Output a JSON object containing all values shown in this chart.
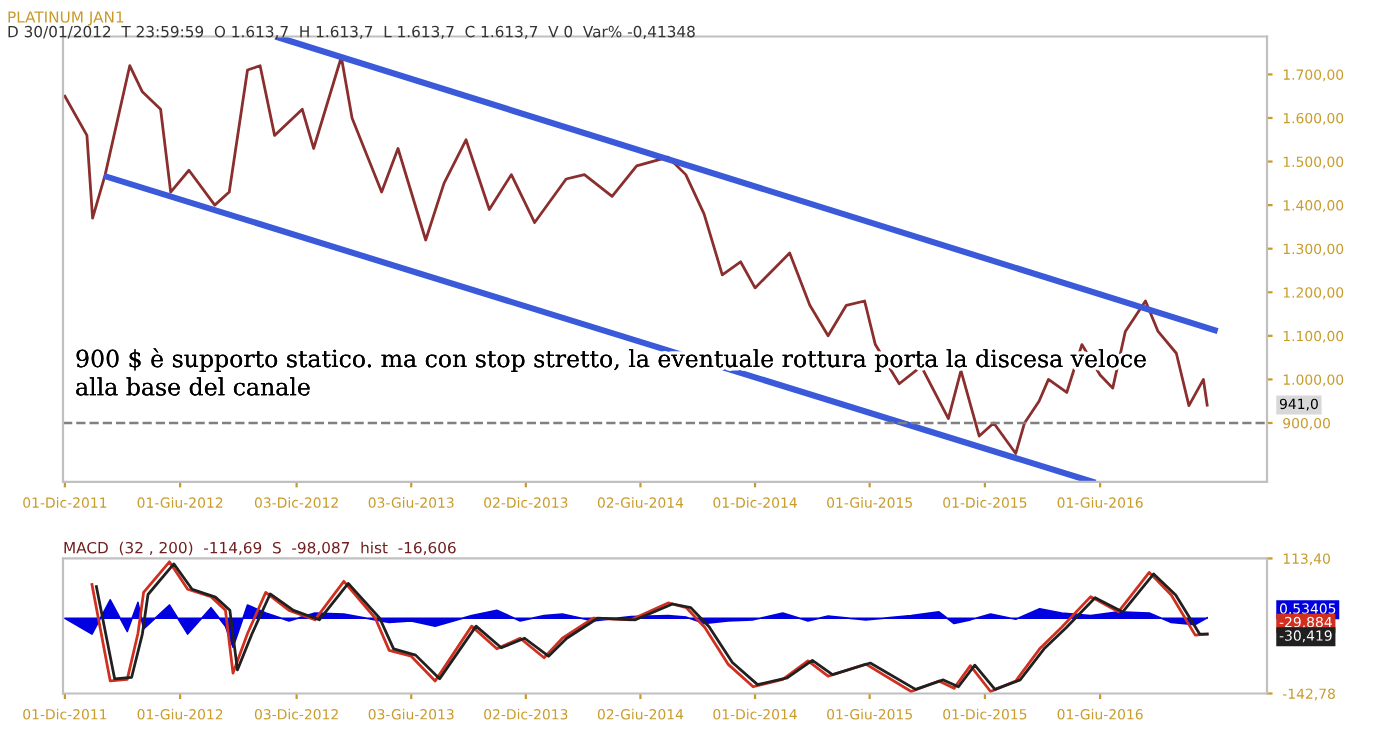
{
  "chart_data": [
    {
      "type": "line",
      "title": "PLATINUM JAN1",
      "subtitle": "D 30/01/2012  T 23:59:59  O 1.613,7  H 1.613,7  L 1.613,7  C 1.613,7  V 0  Var% -0,41348",
      "series": [
        {
          "color": "#8b2e2e",
          "x": [
            "2011-12-01",
            "2012-01-05",
            "2012-01-14",
            "2012-02-03",
            "2012-03-13",
            "2012-04-02",
            "2012-05-01",
            "2012-05-17",
            "2012-06-15",
            "2012-07-26",
            "2012-08-18",
            "2012-09-16",
            "2012-10-06",
            "2012-10-29",
            "2012-12-12",
            "2012-12-30",
            "2013-02-12",
            "2013-03-01",
            "2013-04-17",
            "2013-05-13",
            "2013-06-26",
            "2013-07-25",
            "2013-08-29",
            "2013-10-05",
            "2013-11-09",
            "2013-12-16",
            "2014-02-04",
            "2014-03-05",
            "2014-04-18",
            "2014-05-27",
            "2014-07-16",
            "2014-08-13",
            "2014-09-11",
            "2014-10-10",
            "2014-11-08",
            "2014-12-01",
            "2015-01-25",
            "2015-02-26",
            "2015-03-27",
            "2015-04-25",
            "2015-05-24",
            "2015-06-10",
            "2015-07-18",
            "2015-08-22",
            "2015-10-04",
            "2015-10-24",
            "2015-11-22",
            "2015-12-15",
            "2016-01-19",
            "2016-02-02",
            "2016-02-25",
            "2016-03-11",
            "2016-04-09",
            "2016-05-03",
            "2016-06-01",
            "2016-06-21",
            "2016-07-11",
            "2016-08-12",
            "2016-09-01",
            "2016-09-30",
            "2016-10-20",
            "2016-11-12",
            "2016-11-18"
          ],
          "values": [
            1650,
            1560,
            1370,
            1470,
            1720,
            1660,
            1620,
            1430,
            1480,
            1400,
            1430,
            1710,
            1720,
            1560,
            1620,
            1530,
            1740,
            1600,
            1430,
            1530,
            1320,
            1450,
            1550,
            1390,
            1470,
            1360,
            1460,
            1470,
            1420,
            1490,
            1510,
            1470,
            1380,
            1240,
            1270,
            1210,
            1290,
            1170,
            1100,
            1170,
            1180,
            1080,
            990,
            1030,
            910,
            1020,
            870,
            900,
            830,
            900,
            950,
            1000,
            970,
            1080,
            1010,
            980,
            1110,
            1180,
            1110,
            1060,
            940,
            1000,
            941
          ]
        },
        {
          "color": "#3a5ad9",
          "x": [
            "2012-11-04",
            "2016-11-30"
          ],
          "values": [
            1785,
            1113
          ]
        },
        {
          "color": "#3a5ad9",
          "x": [
            "2012-02-06",
            "2016-05-20"
          ],
          "values": [
            1465,
            765
          ]
        }
      ],
      "annotations": [
        "900 $ è supporto statico. ma con stop stretto, la eventuale rottura porta la discesa veloce\nalla base del canale",
        "941,0"
      ],
      "ref_lines": [
        {
          "axis": "y",
          "value": 900,
          "color": "#808080",
          "line_style": "dashed"
        }
      ],
      "xlim": [
        "2011-11-28",
        "2017-02-21"
      ],
      "xticks": [
        {
          "value": "2011-12-01",
          "label": "01-Dic-2011"
        },
        {
          "value": "2012-06-01",
          "label": "01-Giu-2012"
        },
        {
          "value": "2012-12-03",
          "label": "03-Dic-2012"
        },
        {
          "value": "2013-06-03",
          "label": "03-Giu-2013"
        },
        {
          "value": "2013-12-02",
          "label": "02-Dic-2013"
        },
        {
          "value": "2014-06-02",
          "label": "02-Giu-2014"
        },
        {
          "value": "2014-12-01",
          "label": "01-Dic-2014"
        },
        {
          "value": "2015-06-01",
          "label": "01-Giu-2015"
        },
        {
          "value": "2015-12-01",
          "label": "01-Dic-2015"
        },
        {
          "value": "2016-06-01",
          "label": "01-Giu-2016"
        }
      ],
      "ylim": [
        765,
        1787
      ],
      "yticks": [
        {
          "value": 900,
          "label": "900,00"
        },
        {
          "value": 1000,
          "label": "1.000,00"
        },
        {
          "value": 1100,
          "label": "1.100,00"
        },
        {
          "value": 1200,
          "label": "1.200,00"
        },
        {
          "value": 1300,
          "label": "1.300,00"
        },
        {
          "value": 1400,
          "label": "1.400,00"
        },
        {
          "value": 1500,
          "label": "1.500,00"
        },
        {
          "value": 1600,
          "label": "1.600,00"
        },
        {
          "value": 1700,
          "label": "1.700,00"
        }
      ]
    },
    {
      "type": "line",
      "title": "MACD  (32 , 200)  -114,69  S  -98,087  hist  -16,606",
      "series": [
        {
          "type": "area",
          "color": "#0000e0",
          "x": [
            "2011-12-01",
            "2012-01-13",
            "2012-02-11",
            "2012-03-09",
            "2012-03-26",
            "2012-04-04",
            "2012-05-15",
            "2012-06-13",
            "2012-07-20",
            "2012-08-12",
            "2012-08-24",
            "2012-09-16",
            "2012-10-15",
            "2012-11-21",
            "2013-01-01",
            "2013-02-16",
            "2013-04-07",
            "2013-04-29",
            "2013-06-03",
            "2013-07-11",
            "2013-09-07",
            "2013-10-17",
            "2013-11-23",
            "2013-12-31",
            "2014-01-29",
            "2014-03-19",
            "2014-05-18",
            "2014-07-16",
            "2014-08-14",
            "2014-09-12",
            "2014-10-19",
            "2014-11-28",
            "2015-01-14",
            "2015-02-23",
            "2015-03-27",
            "2015-05-26",
            "2015-08-06",
            "2015-09-19",
            "2015-10-13",
            "2015-11-08",
            "2015-12-10",
            "2016-01-19",
            "2016-02-26",
            "2016-04-01",
            "2016-05-17",
            "2016-06-30",
            "2016-08-18",
            "2016-09-22",
            "2016-10-30",
            "2016-11-18"
          ],
          "values": [
            0,
            -30,
            35,
            -25,
            30,
            -20,
            25,
            -30,
            20,
            -15,
            -55,
            25,
            10,
            -5,
            10,
            8,
            -3,
            -8,
            -5,
            -15,
            5,
            15,
            -5,
            5,
            8,
            -5,
            3,
            5,
            2,
            -10,
            -5,
            -3,
            10,
            -5,
            4,
            -3,
            5,
            12,
            -10,
            -3,
            8,
            -2,
            18,
            10,
            5,
            12,
            10,
            -8,
            -12,
            1
          ]
        },
        {
          "color": "#d03020",
          "x": [
            "2012-01-13",
            "2012-02-11",
            "2012-03-09",
            "2012-03-26",
            "2012-04-04",
            "2012-05-15",
            "2012-06-13",
            "2012-07-20",
            "2012-08-12",
            "2012-08-24",
            "2012-09-16",
            "2012-10-15",
            "2012-11-21",
            "2013-01-01",
            "2013-02-16",
            "2013-04-07",
            "2013-04-29",
            "2013-06-03",
            "2013-07-11",
            "2013-09-07",
            "2013-10-17",
            "2013-11-23",
            "2013-12-31",
            "2014-01-29",
            "2014-03-19",
            "2014-05-18",
            "2014-07-16",
            "2014-08-14",
            "2014-09-12",
            "2014-10-19",
            "2014-11-28",
            "2015-01-14",
            "2015-02-23",
            "2015-03-27",
            "2015-05-26",
            "2015-08-06",
            "2015-09-19",
            "2015-10-13",
            "2015-11-08",
            "2015-12-10",
            "2016-01-19",
            "2016-02-26",
            "2016-04-01",
            "2016-05-17",
            "2016-06-30",
            "2016-08-18",
            "2016-09-22",
            "2016-10-30",
            "2016-11-18"
          ],
          "values": [
            64,
            -119,
            -116,
            -29,
            49,
            107,
            55,
            41,
            15,
            -104,
            -29,
            49,
            15,
            -3,
            70,
            0,
            -61,
            -72,
            -119,
            -15,
            -58,
            -38,
            -75,
            -38,
            0,
            -3,
            29,
            20,
            -17,
            -87,
            -130,
            -116,
            -81,
            -110,
            -87,
            -139,
            -119,
            -133,
            -90,
            -139,
            -119,
            -58,
            -17,
            41,
            12,
            87,
            44,
            -32,
            -30
          ]
        },
        {
          "color": "#202020",
          "x": [
            "2012-01-20",
            "2012-02-18",
            "2012-03-16",
            "2012-04-02",
            "2012-04-11",
            "2012-05-22",
            "2012-06-20",
            "2012-07-27",
            "2012-08-19",
            "2012-08-31",
            "2012-09-23",
            "2012-10-22",
            "2012-11-28",
            "2013-01-08",
            "2013-02-23",
            "2013-04-14",
            "2013-05-06",
            "2013-06-10",
            "2013-07-18",
            "2013-09-14",
            "2013-10-24",
            "2013-11-30",
            "2014-01-07",
            "2014-02-05",
            "2014-03-26",
            "2014-05-25",
            "2014-07-23",
            "2014-08-21",
            "2014-09-19",
            "2014-10-26",
            "2014-12-05",
            "2015-01-21",
            "2015-03-02",
            "2015-04-03",
            "2015-06-02",
            "2015-08-13",
            "2015-09-26",
            "2015-10-20",
            "2015-11-15",
            "2015-12-17",
            "2016-01-26",
            "2016-03-04",
            "2016-04-08",
            "2016-05-24",
            "2016-07-07",
            "2016-08-25",
            "2016-09-29",
            "2016-11-06",
            "2016-11-18"
          ],
          "values": [
            60,
            -115,
            -112,
            -30,
            45,
            103,
            55,
            40,
            15,
            -98,
            -30,
            46,
            15,
            -3,
            66,
            0,
            -58,
            -70,
            -115,
            -15,
            -56,
            -38,
            -72,
            -38,
            0,
            -3,
            27,
            20,
            -16,
            -84,
            -126,
            -113,
            -80,
            -107,
            -85,
            -135,
            -117,
            -130,
            -89,
            -135,
            -117,
            -58,
            -18,
            39,
            12,
            84,
            44,
            -30,
            -30
          ]
        }
      ],
      "annotations": [
        "0,53405",
        "-29,884",
        "-30,419"
      ],
      "xlim": [
        "2011-11-28",
        "2017-02-21"
      ],
      "xticks": [
        {
          "value": "2011-12-01",
          "label": "01-Dic-2011"
        },
        {
          "value": "2012-06-01",
          "label": "01-Giu-2012"
        },
        {
          "value": "2012-12-03",
          "label": "03-Dic-2012"
        },
        {
          "value": "2013-06-03",
          "label": "03-Giu-2013"
        },
        {
          "value": "2013-12-02",
          "label": "02-Dic-2013"
        },
        {
          "value": "2014-06-02",
          "label": "02-Giu-2014"
        },
        {
          "value": "2014-12-01",
          "label": "01-Dic-2014"
        },
        {
          "value": "2015-06-01",
          "label": "01-Giu-2015"
        },
        {
          "value": "2015-12-01",
          "label": "01-Dic-2015"
        },
        {
          "value": "2016-06-01",
          "label": "01-Giu-2016"
        }
      ],
      "ylim": [
        -142.78,
        113.4
      ],
      "yticks": [
        {
          "value": -142.78,
          "label": "-142,78"
        },
        {
          "value": 113.4,
          "label": "113,40"
        }
      ]
    }
  ]
}
